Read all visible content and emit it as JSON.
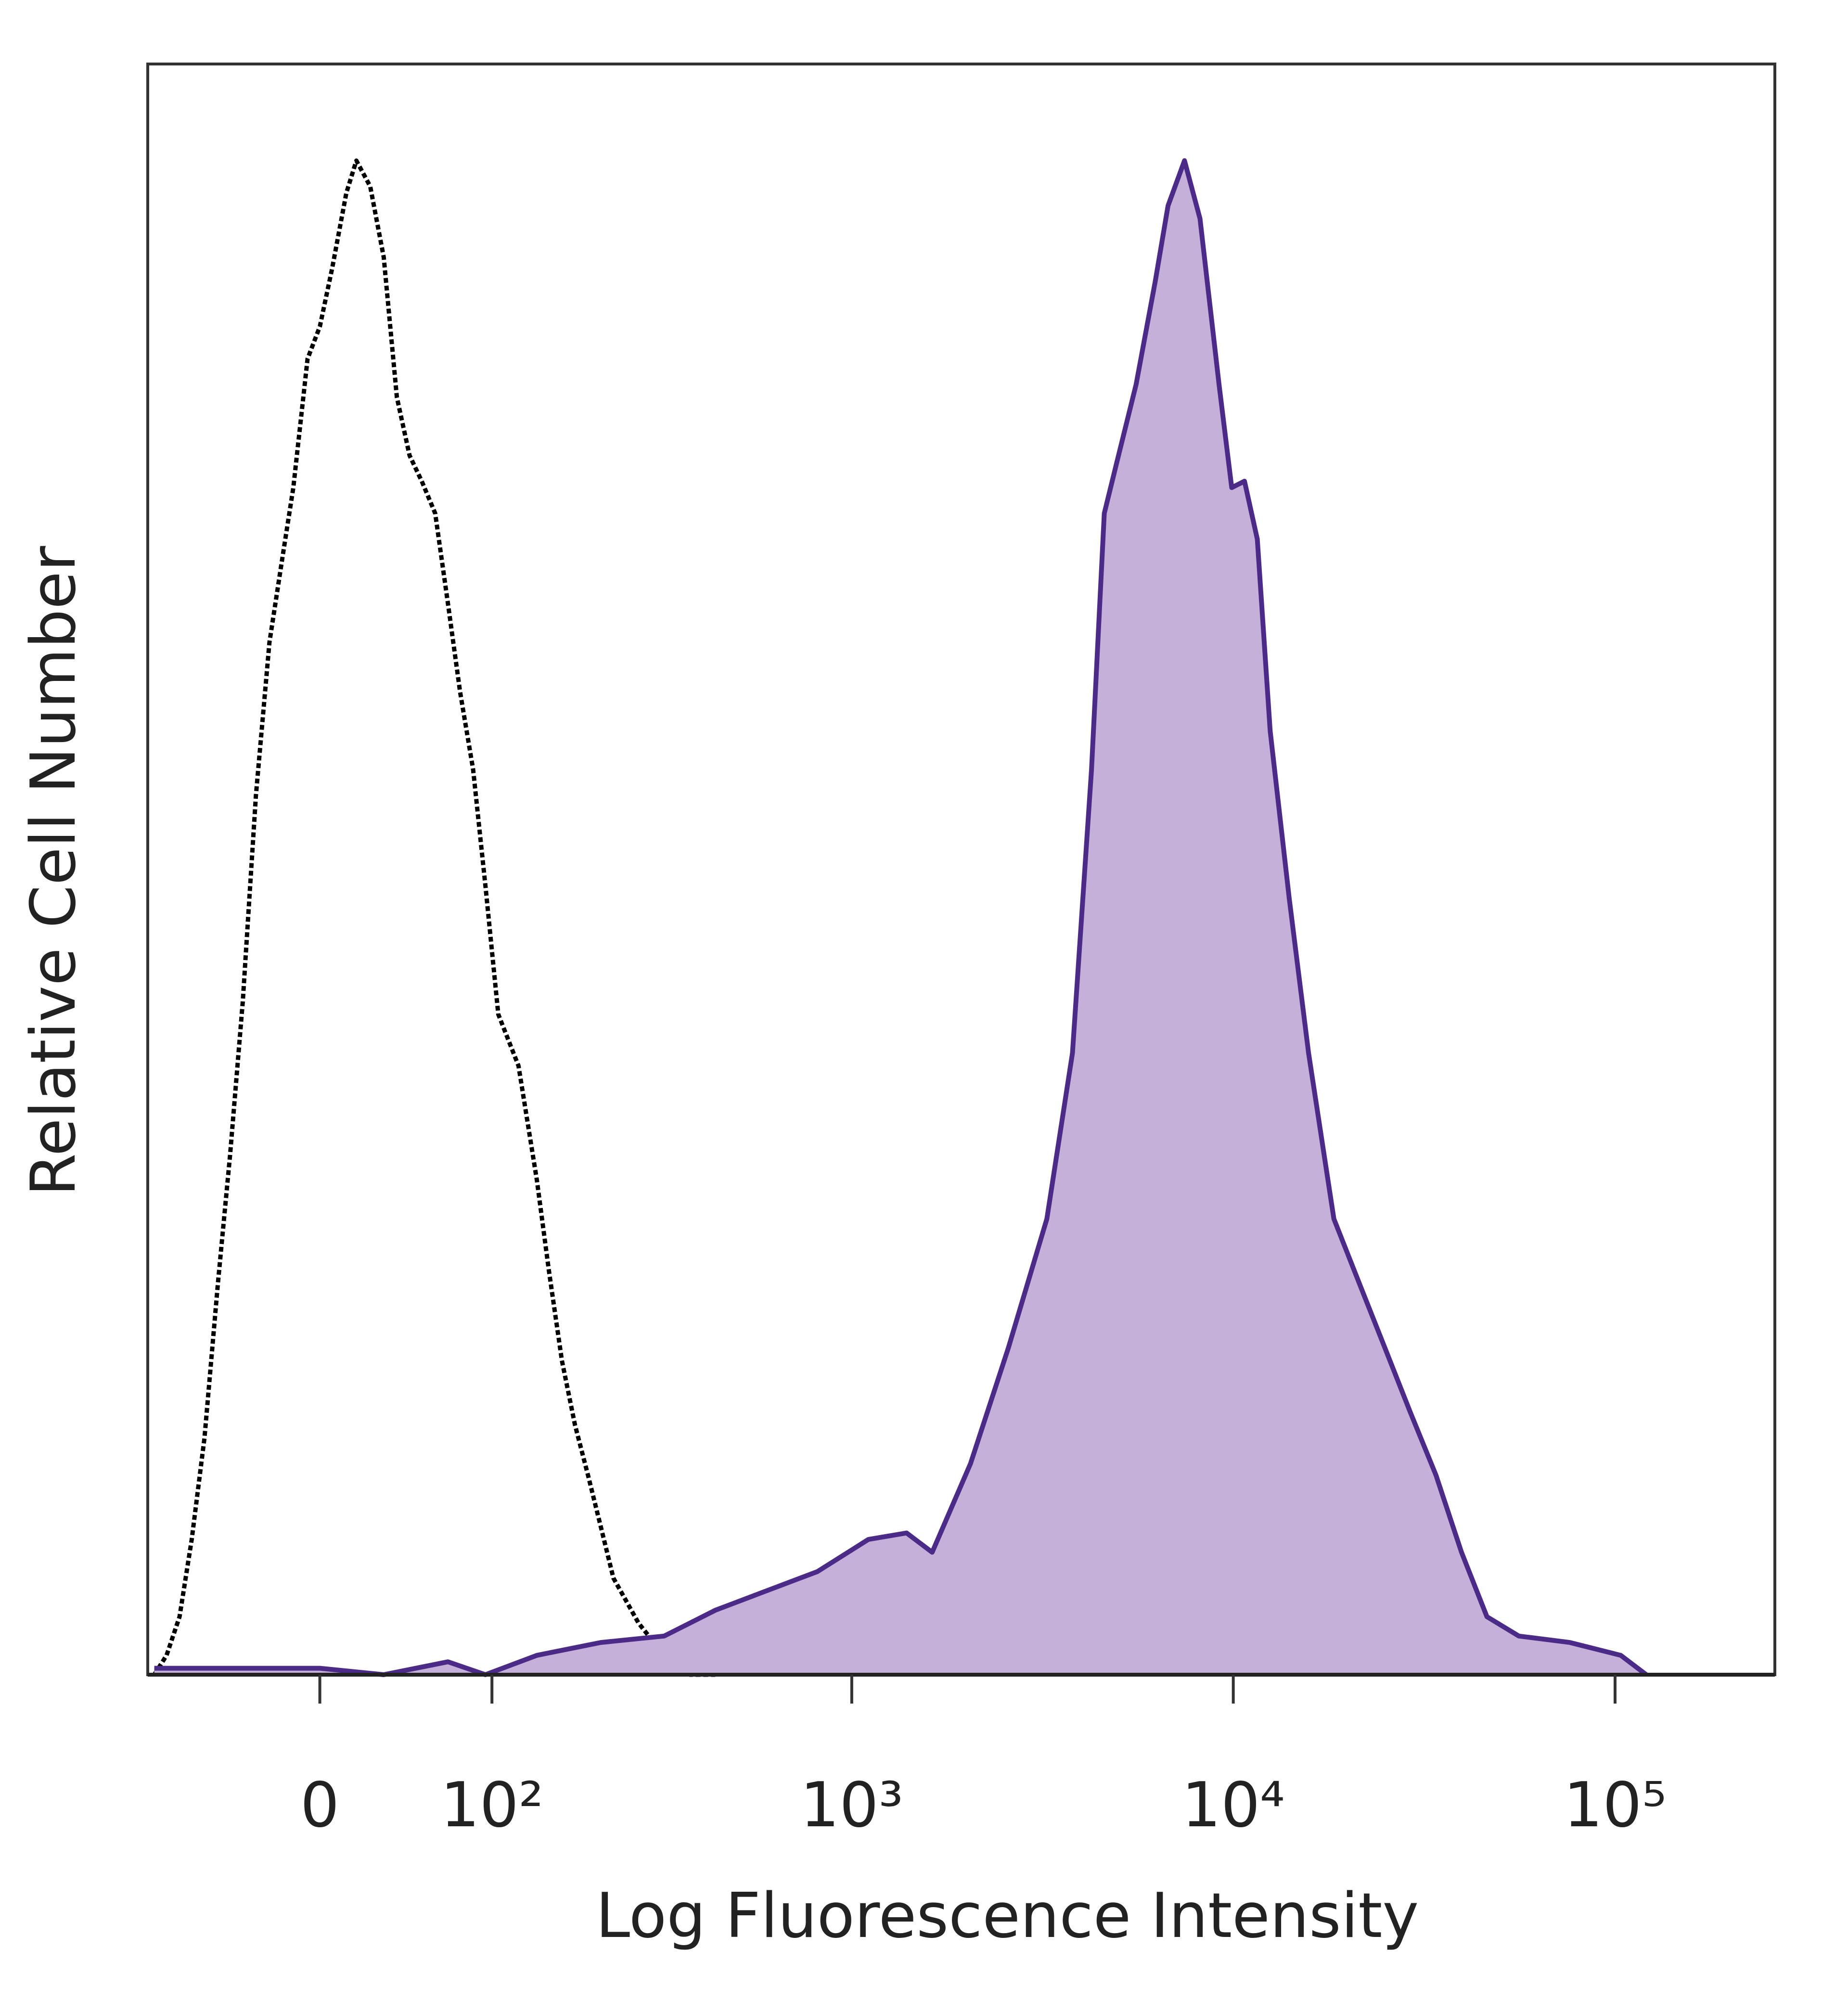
{
  "chart_data": {
    "type": "line",
    "xlabel": "Log Fluorescence Intensity",
    "ylabel": "Relative Cell Number",
    "xscale": "biexponential",
    "xlim": [
      -100,
      262144
    ],
    "xticks": [
      0,
      {
        "value": 100,
        "label": "10²"
      },
      {
        "value": 1000,
        "label": "10³"
      },
      {
        "value": 10000,
        "label": "10⁴"
      },
      {
        "value": 100000,
        "label": "10⁵"
      }
    ],
    "ylim": [
      0,
      100
    ],
    "series": [
      {
        "color": "#000000",
        "linestyle": "dotted",
        "x": [
          -95,
          -86,
          -77,
          -69,
          -61,
          -53,
          -46,
          -39,
          -32,
          -25,
          -19,
          -13,
          -6,
          0,
          6,
          13,
          18,
          25,
          32,
          39,
          46,
          53,
          61,
          69,
          77,
          86,
          95,
          105,
          122,
          139,
          151,
          165,
          180,
          196,
          213,
          231,
          271,
          318,
          373,
          436
        ],
        "values": [
          0,
          1.2,
          3.6,
          8.4,
          14.7,
          24.3,
          32.3,
          41.8,
          54.6,
          64.1,
          68.9,
          73.7,
          81.7,
          83.7,
          87.3,
          92.0,
          94.0,
          92.4,
          88.0,
          79.3,
          75.7,
          74.1,
          72.1,
          66.5,
          61.0,
          56.2,
          49.0,
          41.0,
          37.8,
          30.7,
          25.1,
          19.5,
          15.5,
          12.4,
          9.2,
          6.0,
          3.2,
          1.2,
          0,
          0
        ]
      },
      {
        "color": "#4b2a88",
        "linestyle": "solid",
        "fill": "#c4b0d8",
        "x": [
          -95,
          -32,
          0,
          32,
          69,
          95,
          139,
          213,
          318,
          436,
          595,
          812,
          1106,
          1393,
          1626,
          2049,
          2576,
          3248,
          3791,
          4253,
          4593,
          4957,
          5565,
          6245,
          6747,
          7452,
          8181,
          9177,
          9906,
          10700,
          11559,
          12490,
          14013,
          15746,
          18347,
          21384,
          24948,
          29079,
          33939,
          39609,
          46170,
          55971,
          76140,
          103518,
          120690
        ],
        "values": [
          0.4,
          0.4,
          0.4,
          0,
          0.8,
          0,
          1.2,
          2.0,
          2.4,
          4.0,
          5.2,
          6.4,
          8.4,
          8.8,
          7.6,
          13.1,
          20.3,
          28.3,
          38.6,
          56.2,
          72.1,
          75.3,
          80.1,
          86.5,
          91.2,
          94.0,
          90.4,
          80.1,
          73.7,
          74.1,
          70.5,
          58.6,
          48.2,
          38.6,
          28.3,
          24.3,
          20.3,
          16.3,
          12.4,
          7.6,
          3.6,
          2.4,
          2.0,
          1.2,
          0
        ]
      }
    ]
  }
}
